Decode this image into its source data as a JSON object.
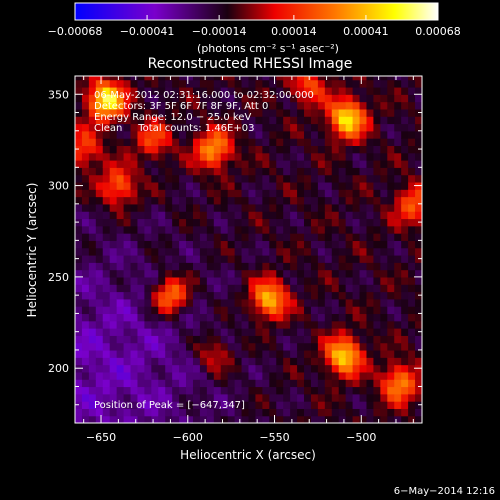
{
  "colors": {
    "background": "#000000",
    "axis": "#ffffff",
    "colormap": [
      "#0000ff",
      "#7a00cc",
      "#000000",
      "#ee0000",
      "#ff7a00",
      "#ffff00",
      "#ffffff"
    ]
  },
  "chart_data": {
    "type": "heatmap",
    "title": "Reconstructed RHESSI Image",
    "xlabel": "Heliocentric X (arcsec)",
    "ylabel": "Heliocentric Y (arcsec)",
    "xlim": [
      -665,
      -465
    ],
    "ylim": [
      170,
      360
    ],
    "x_ticks": [
      -650,
      -600,
      -550,
      -500
    ],
    "y_ticks": [
      200,
      250,
      300,
      350
    ],
    "x_tick_labels": [
      "−650",
      "−600",
      "−550",
      "−500"
    ],
    "y_tick_labels": [
      "200",
      "250",
      "300",
      "350"
    ],
    "colorbar": {
      "range": [
        -0.00068,
        0.00068
      ],
      "tick_values": [
        -0.00068,
        -0.00041,
        -0.00014,
        0.00014,
        0.00041,
        0.00068
      ],
      "tick_labels": [
        "−0.00068",
        "−0.00041",
        "−0.00014",
        "0.00014",
        "0.00041",
        "0.00068"
      ],
      "label": "(photons cm⁻² s⁻¹ asec⁻²)"
    },
    "annotations": {
      "time_range": "06-May-2012 02:31:16.000 to 02:32:00.000",
      "detectors": "Detectors: 3F 5F 6F 7F 8F 9F, Att 0",
      "energy_range": "Energy Range: 12.0 − 25.0 keV",
      "method": "Clean     Total counts: 1.46E+03",
      "peak": "Position of Peak = [−647,347]"
    },
    "peak_position": [
      -647,
      347
    ],
    "hotspots": [
      {
        "x": -647,
        "y": 347,
        "value": 0.00068
      },
      {
        "x": -508,
        "y": 337,
        "value": 0.00062
      },
      {
        "x": -585,
        "y": 320,
        "value": 0.00048
      },
      {
        "x": -640,
        "y": 300,
        "value": 0.0004
      },
      {
        "x": -610,
        "y": 240,
        "value": 0.0005
      },
      {
        "x": -553,
        "y": 238,
        "value": 0.00055
      },
      {
        "x": -510,
        "y": 207,
        "value": 0.00058
      },
      {
        "x": -478,
        "y": 192,
        "value": 0.00045
      },
      {
        "x": -620,
        "y": 325,
        "value": 0.0003
      },
      {
        "x": -470,
        "y": 290,
        "value": 0.00035
      },
      {
        "x": -530,
        "y": 355,
        "value": 0.0003
      },
      {
        "x": -585,
        "y": 208,
        "value": 0.00025
      },
      {
        "x": -660,
        "y": 320,
        "value": 0.00032
      }
    ]
  },
  "footer": {
    "date": "6−May−2014 12:16"
  }
}
